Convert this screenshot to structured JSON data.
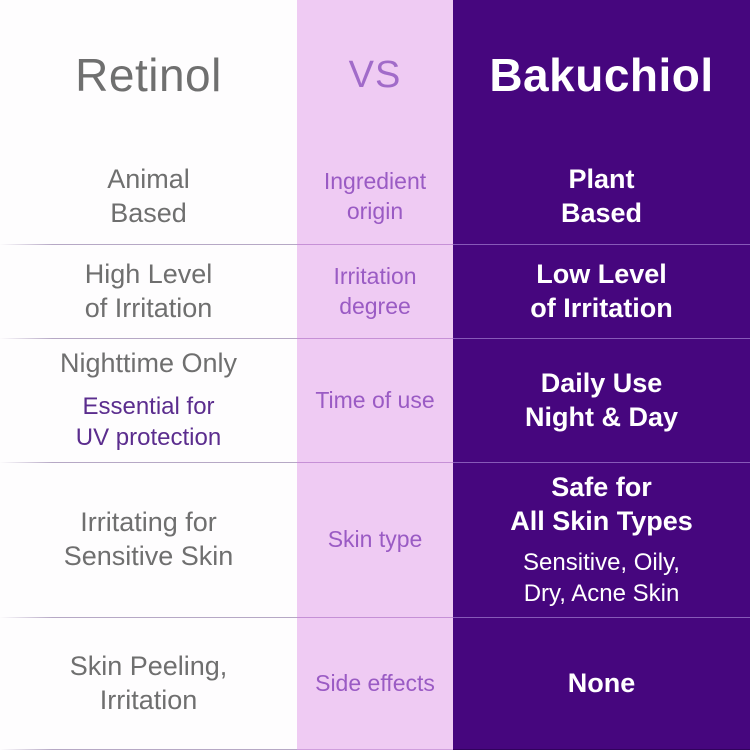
{
  "title": "Retinol vs Bakuchiol comparison",
  "colors": {
    "left_column_bg": "#FEFDFE",
    "middle_column_bg": "#EFCBF3",
    "right_column_bg": "#46067E",
    "left_text": "#6F6F6F",
    "left_note_text": "#5B2D8E",
    "middle_text": "#9A5BC4",
    "vs_text": "#A16BC9",
    "right_text": "#FFFFFF"
  },
  "header": {
    "left": "Retinol",
    "vs": "VS",
    "right": "Bakuchiol"
  },
  "rows": [
    {
      "attribute": "Ingredient\norigin",
      "retinol_main": "Animal\nBased",
      "bakuchiol_main": "Plant\nBased"
    },
    {
      "attribute": "Irritation\ndegree",
      "retinol_main": "High Level\nof Irritation",
      "bakuchiol_main": "Low Level\nof Irritation"
    },
    {
      "attribute": "Time of use",
      "retinol_main": "Nighttime Only",
      "retinol_note": "Essential for\nUV protection",
      "bakuchiol_main": "Daily Use\nNight & Day"
    },
    {
      "attribute": "Skin type",
      "retinol_main": "Irritating for\nSensitive Skin",
      "bakuchiol_main": "Safe for\nAll Skin Types",
      "bakuchiol_note": "Sensitive, Oily,\nDry, Acne Skin"
    },
    {
      "attribute": "Side effects",
      "retinol_main": "Skin Peeling,\nIrritation",
      "bakuchiol_main": "None"
    }
  ]
}
